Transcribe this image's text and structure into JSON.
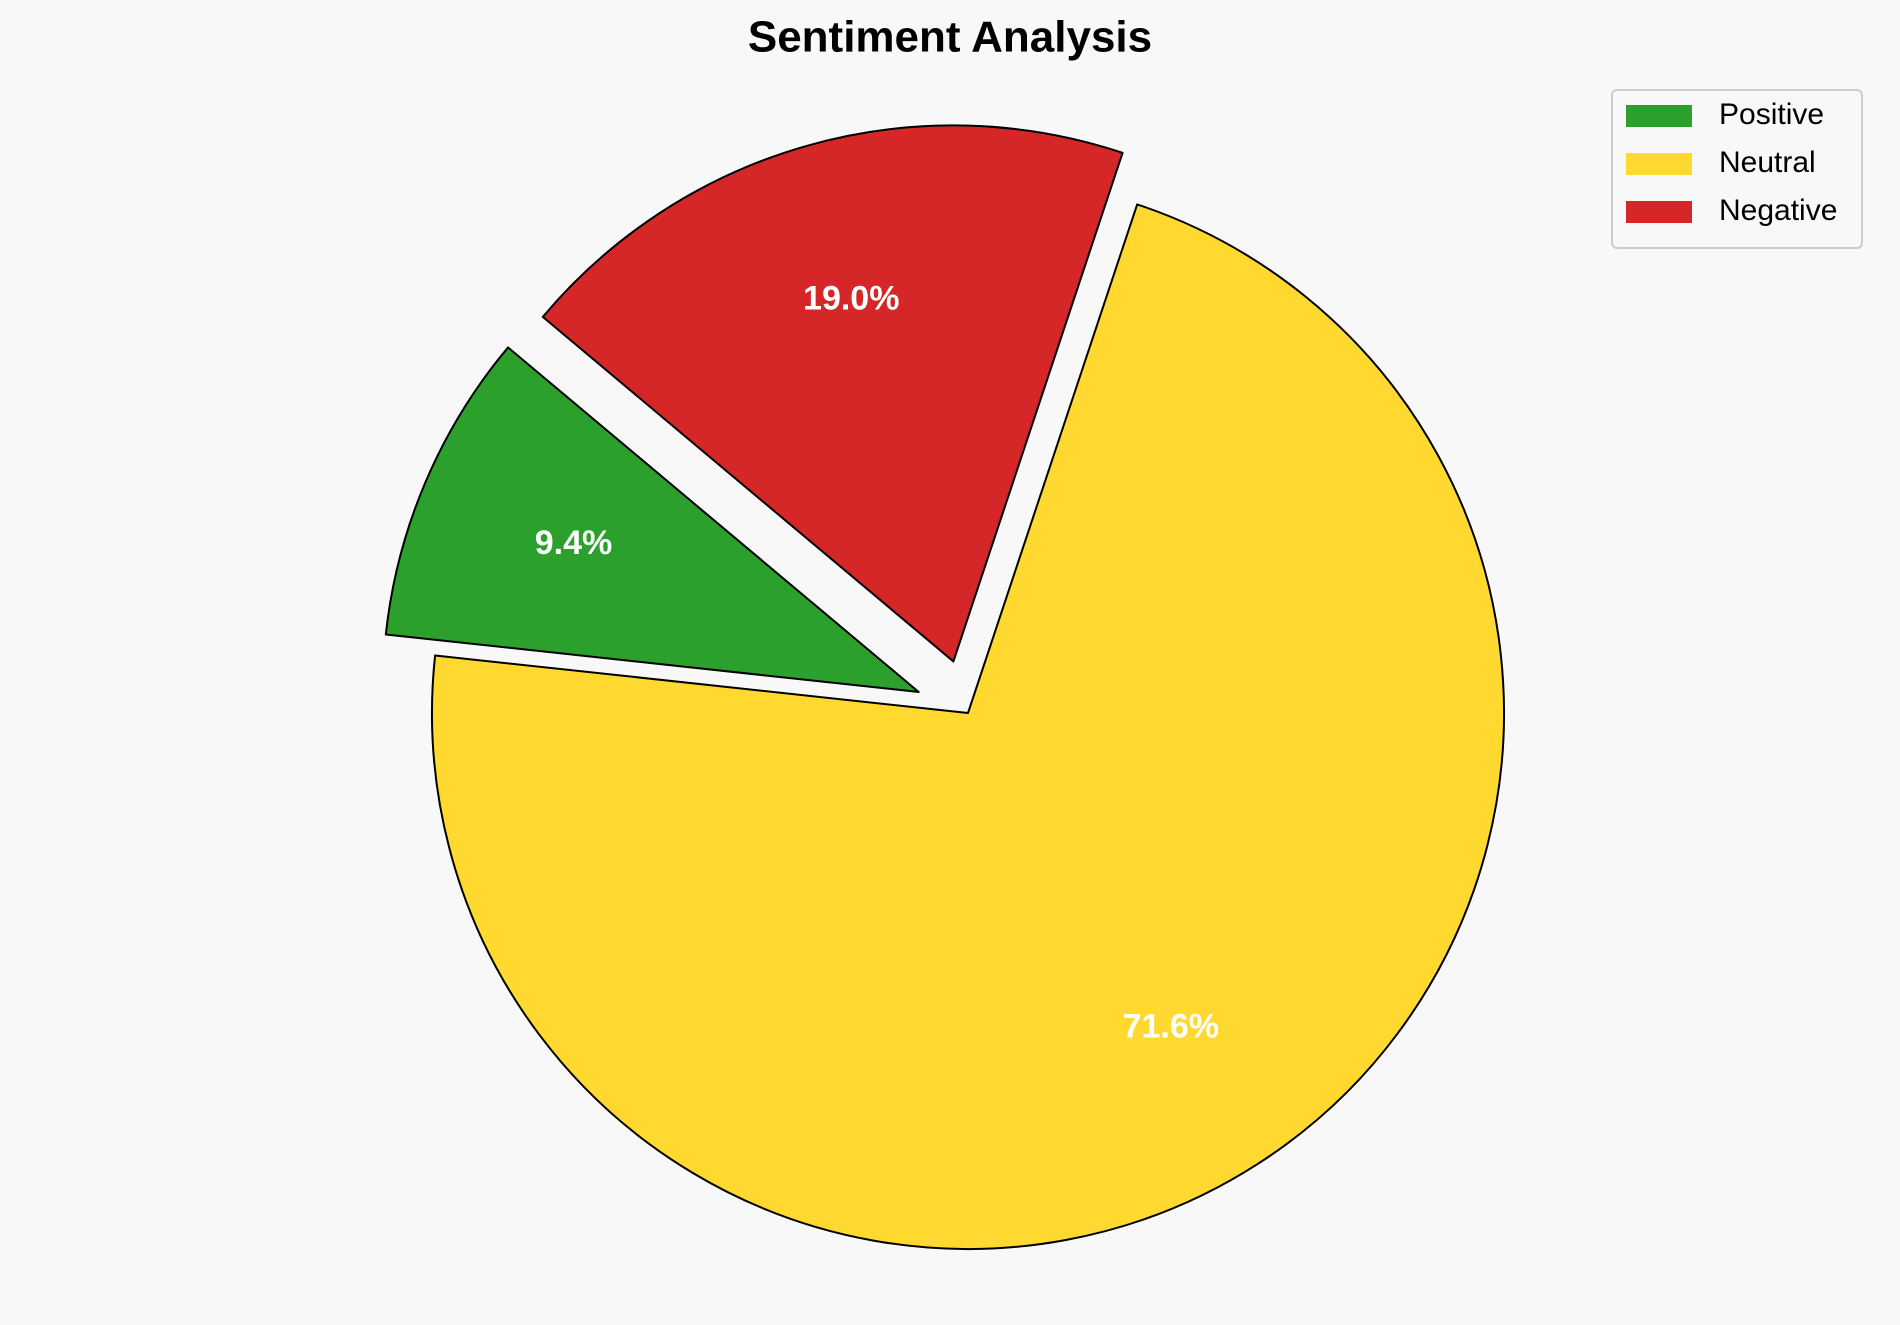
{
  "chart_data": {
    "type": "pie",
    "title": "Sentiment Analysis",
    "categories": [
      "Positive",
      "Neutral",
      "Negative"
    ],
    "values": [
      9.4,
      71.6,
      19.0
    ],
    "value_labels": [
      "9.4%",
      "71.6%",
      "19.0%"
    ],
    "colors": [
      "#2ca02c",
      "#ffd92f",
      "#d62728"
    ],
    "explode": [
      0.1,
      0,
      0.1
    ],
    "startangle": 140,
    "legend": "upper right"
  }
}
